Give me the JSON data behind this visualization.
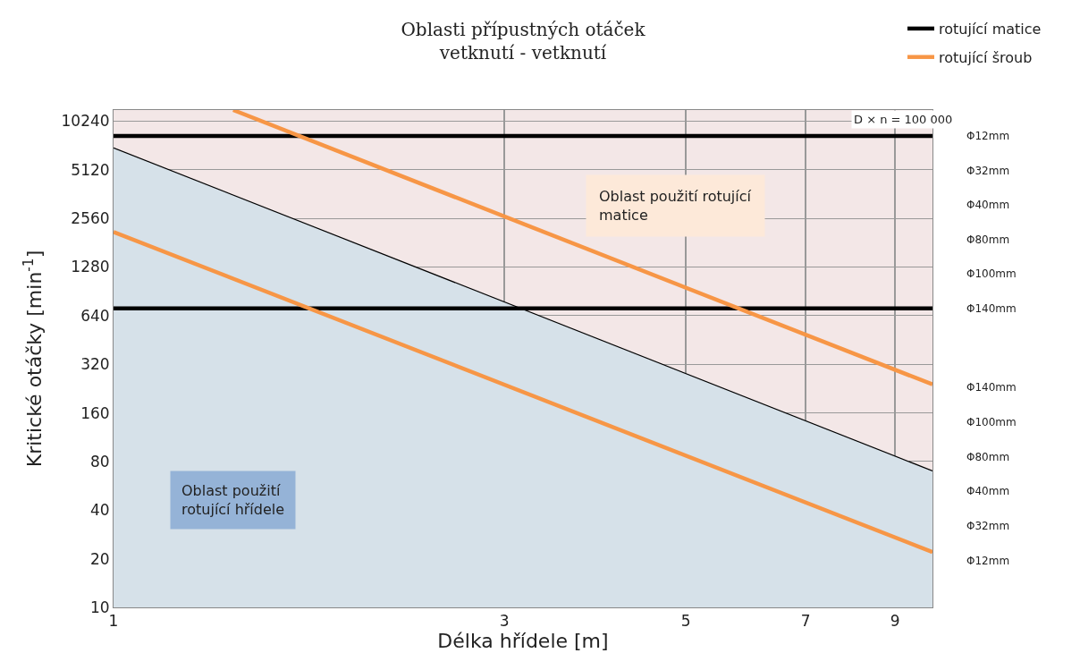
{
  "chart_data": {
    "type": "line",
    "title": "Oblasti přípustných otáček\nvetknutí - vetknutí",
    "xlabel": "Délka hřídele [m]",
    "ylabel": "Kritické otáčky [min$^{-1}$]",
    "log": "xy",
    "xlim": [
      1,
      10
    ],
    "xticks": [
      1,
      3,
      5,
      7,
      9
    ],
    "ylim": [
      10,
      12000
    ],
    "yticks": [
      10,
      20,
      40,
      80,
      160,
      320,
      640,
      1280,
      2560,
      5120,
      10240
    ],
    "grid": true,
    "legend": "top right",
    "line_style": "solid",
    "marker": "none",
    "series": [
      {
        "type": "area",
        "color": "#d6e1e9",
        "x": [
          1,
          10
        ],
        "values": [
          7000,
          70
        ]
      },
      {
        "name": "rotující matice",
        "color": "#000000",
        "x": [
          1,
          10
        ],
        "values": [
          8300,
          8300
        ]
      },
      {
        "color": "#000000",
        "x": [
          1,
          10
        ],
        "values": [
          710,
          710
        ]
      },
      {
        "name": "rotující šroub",
        "color": "#f79646",
        "x": [
          1.4,
          10
        ],
        "values": [
          12000,
          240
        ]
      },
      {
        "color": "#f79646",
        "x": [
          1,
          10
        ],
        "values": [
          2110,
          22
        ]
      }
    ],
    "annotations": [
      "D × n = 100 000",
      "Oblast použití rotující\nmatice",
      "Oblast použití\nrotující hřídele",
      "Φ12mm",
      "Φ32mm",
      "Φ40mm",
      "Φ80mm",
      "Φ100mm",
      "Φ140mm",
      "Φ140mm",
      "Φ100mm",
      "Φ80mm",
      "Φ40mm",
      "Φ32mm",
      "Φ12mm"
    ]
  }
}
